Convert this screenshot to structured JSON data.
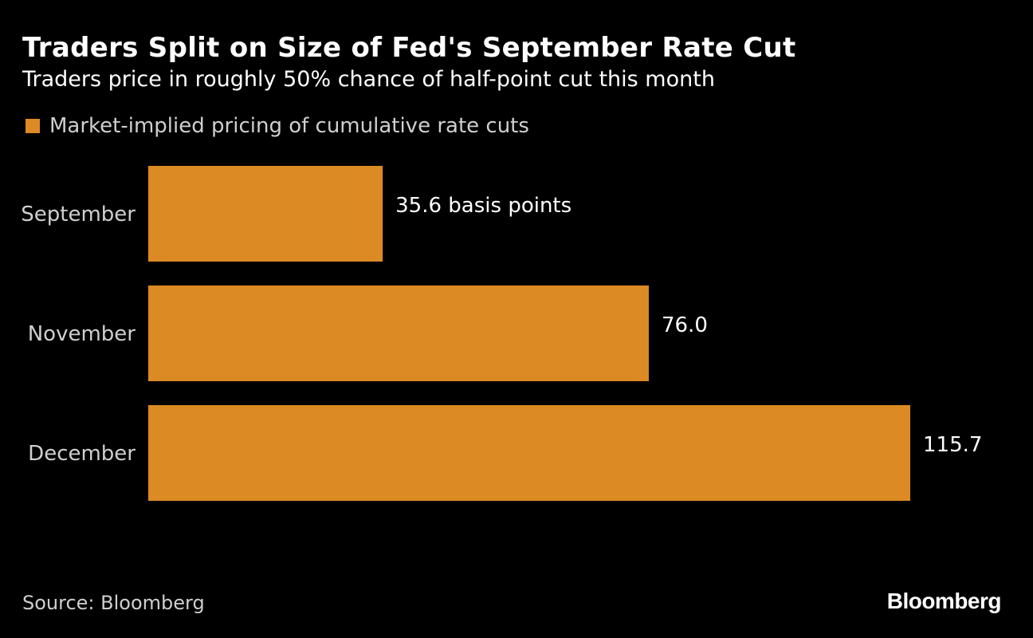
{
  "chart_data": {
    "type": "bar",
    "orientation": "horizontal",
    "title": "Traders Split on Size of Fed's September Rate Cut",
    "subtitle": "Traders price in roughly 50% chance of half-point cut this month",
    "legend": {
      "placement": "top-left",
      "entries": [
        {
          "name": "Market-implied pricing of cumulative rate cuts",
          "color": "#dc8a24"
        }
      ]
    },
    "categories": [
      "September",
      "November",
      "December"
    ],
    "series": [
      {
        "name": "Market-implied pricing of cumulative rate cuts",
        "color": "#dc8a24",
        "values": [
          35.6,
          76.0,
          115.7
        ]
      }
    ],
    "data_labels": [
      "35.6 basis points",
      "76.0",
      "115.7"
    ],
    "xlim": [
      0,
      115.7
    ],
    "grid": false,
    "source": "Source: Bloomberg",
    "brand": "Bloomberg"
  }
}
